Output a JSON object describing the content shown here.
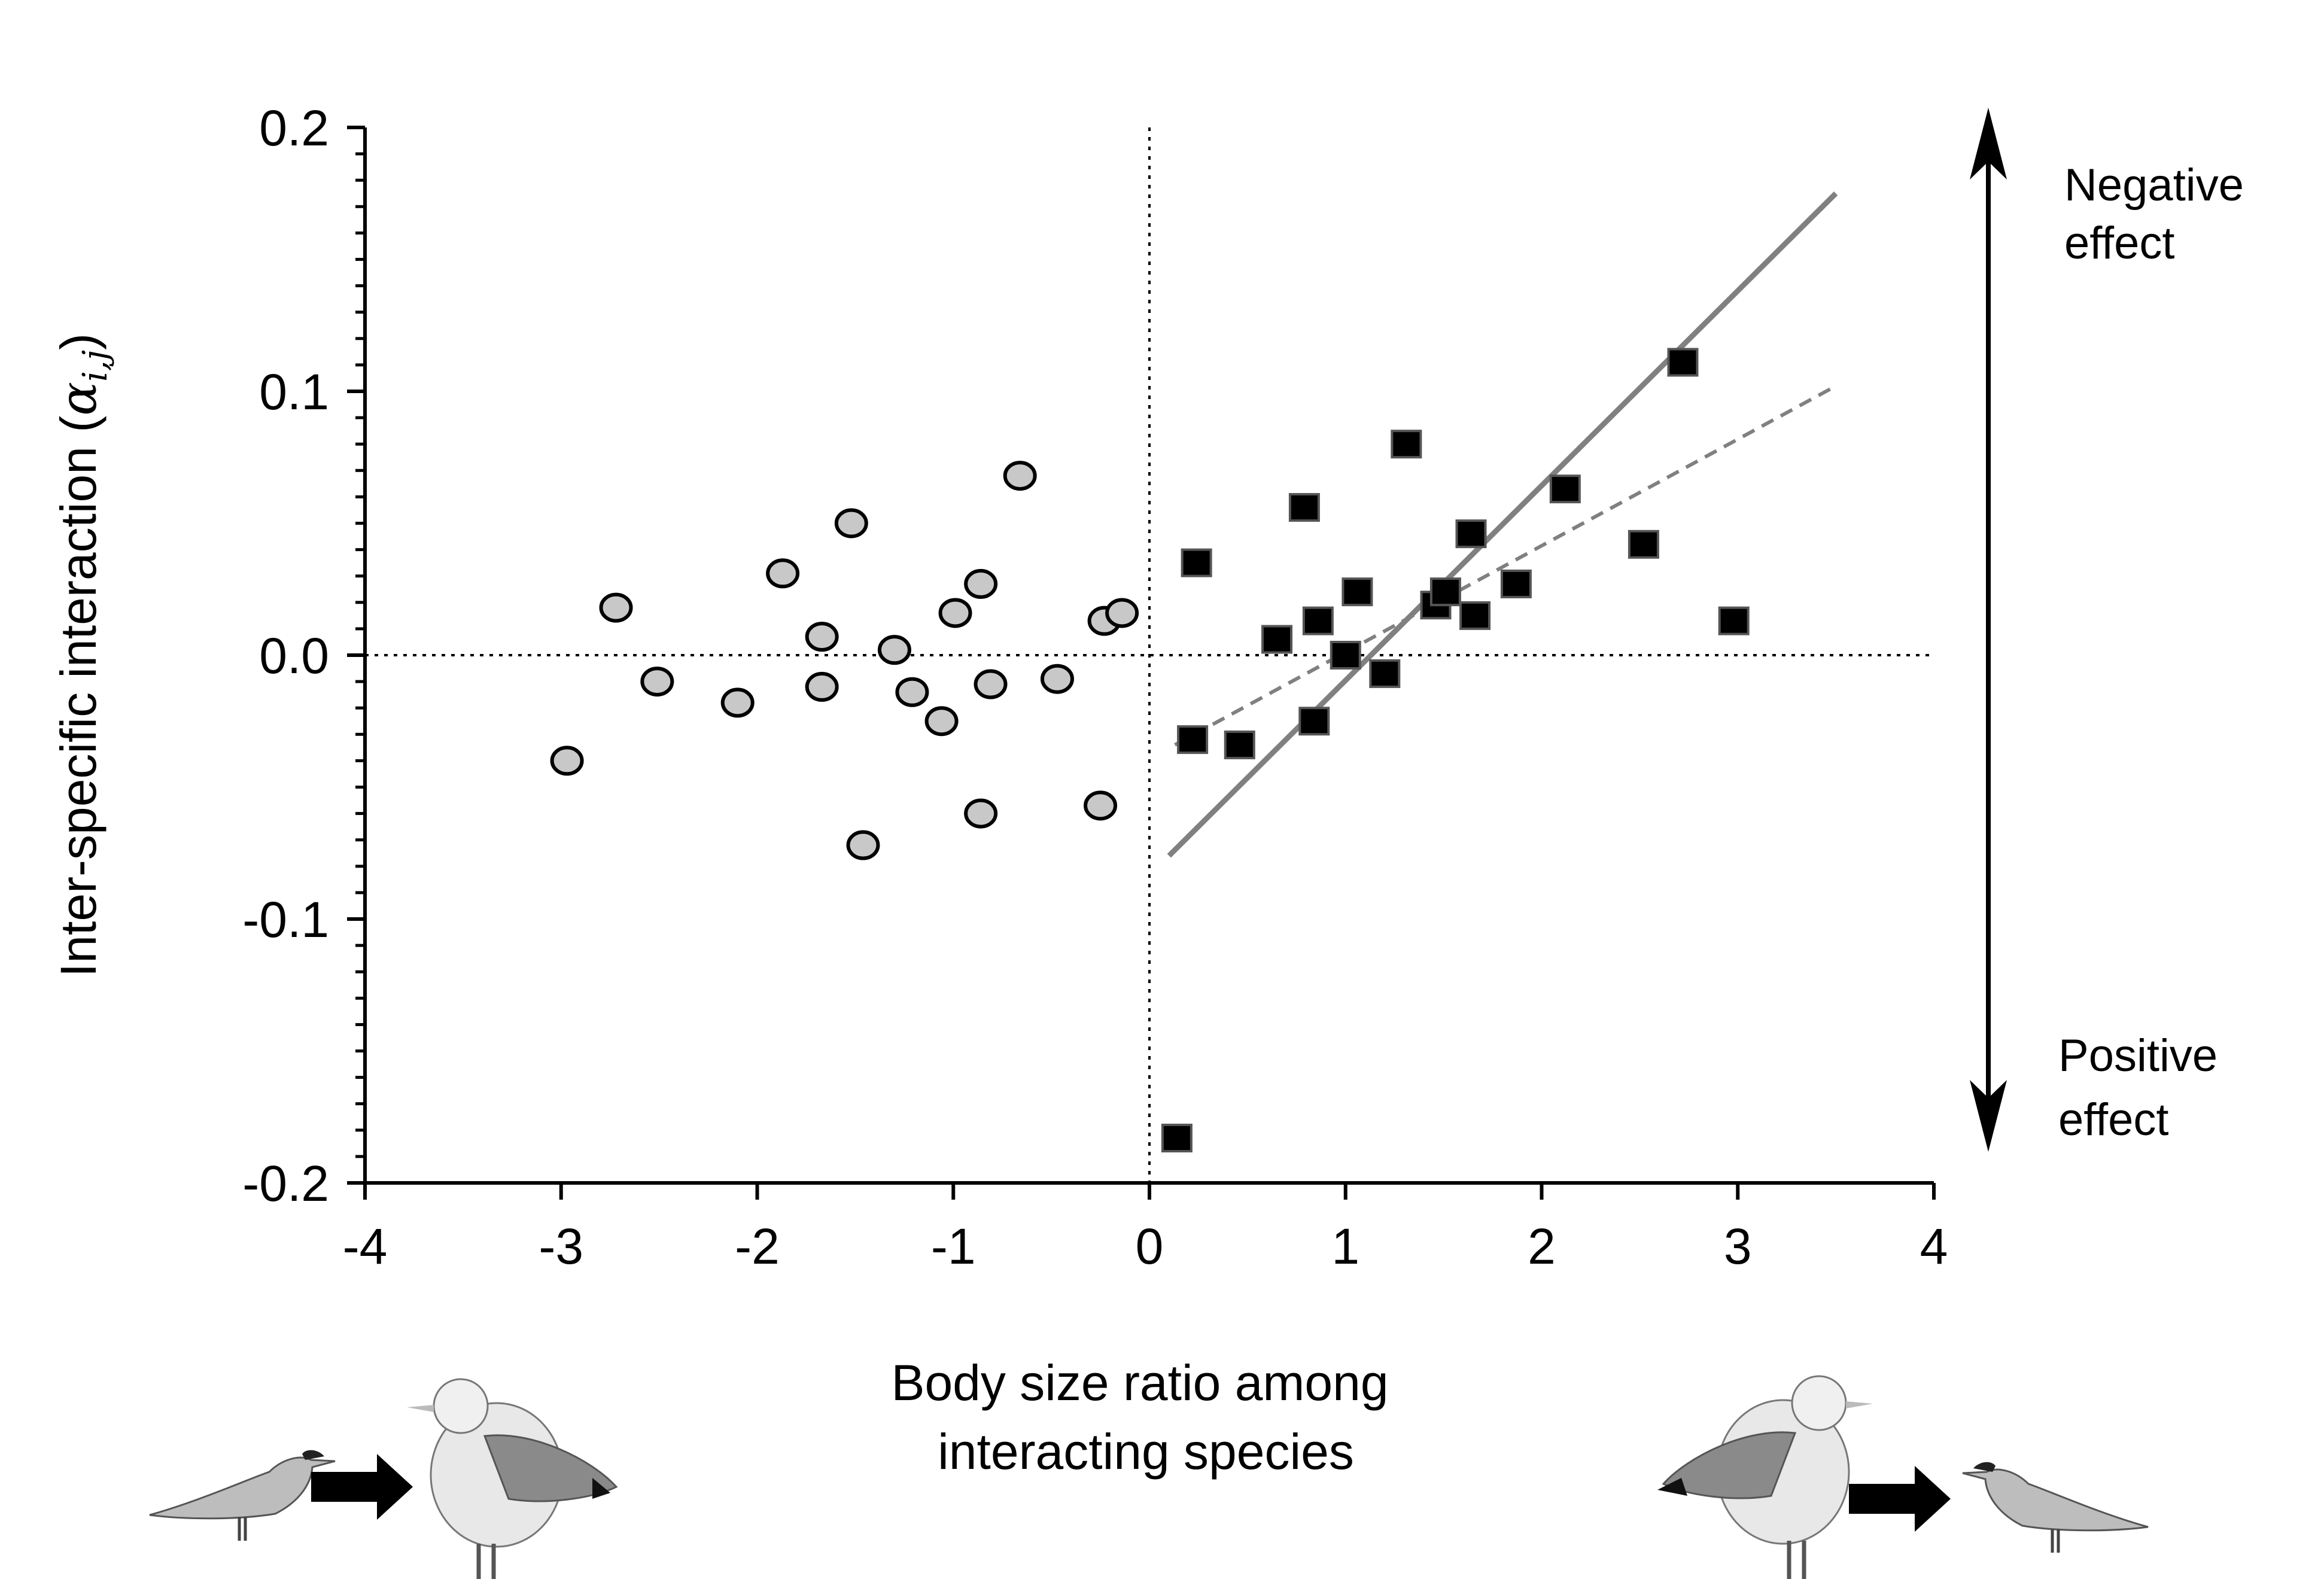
{
  "chart_data": {
    "type": "scatter",
    "xlabel_lines": [
      "Body size ratio among",
      "interacting species"
    ],
    "ylabel": "Inter-specific interaction",
    "ylabel_symbol": "α",
    "ylabel_subscript": "i,j",
    "xlim": [
      -4,
      4
    ],
    "ylim": [
      -0.2,
      0.2
    ],
    "xticks": [
      "-4",
      "-3",
      "-2",
      "-1",
      "0",
      "1",
      "2",
      "3",
      "4"
    ],
    "yticks": [
      "0.2",
      "0.1",
      "0.0",
      "-0.1",
      "-0.2"
    ],
    "reference_lines": {
      "x": 0,
      "y": 0
    },
    "annotations": {
      "negative": [
        "Negative",
        "effect"
      ],
      "positive": [
        "Positive",
        "effect"
      ]
    },
    "series": [
      {
        "marker": "circle",
        "fill": "#c8c8c8",
        "points": [
          [
            -2.97,
            -0.04
          ],
          [
            -2.72,
            0.018
          ],
          [
            -2.51,
            -0.01
          ],
          [
            -2.1,
            -0.018
          ],
          [
            -1.87,
            0.031
          ],
          [
            -1.67,
            0.007
          ],
          [
            -1.67,
            -0.012
          ],
          [
            -1.52,
            0.05
          ],
          [
            -1.46,
            -0.072
          ],
          [
            -1.3,
            0.002
          ],
          [
            -1.21,
            -0.014
          ],
          [
            -1.06,
            -0.025
          ],
          [
            -0.99,
            0.016
          ],
          [
            -0.86,
            0.027
          ],
          [
            -0.86,
            -0.06
          ],
          [
            -0.81,
            -0.011
          ],
          [
            -0.66,
            0.068
          ],
          [
            -0.47,
            -0.009
          ],
          [
            -0.25,
            -0.057
          ],
          [
            -0.23,
            0.013
          ],
          [
            -0.14,
            0.016
          ]
        ]
      },
      {
        "marker": "square",
        "fill": "#000000",
        "points": [
          [
            0.14,
            -0.183
          ],
          [
            0.22,
            -0.032
          ],
          [
            0.24,
            0.035
          ],
          [
            0.46,
            -0.034
          ],
          [
            0.65,
            0.006
          ],
          [
            0.79,
            0.056
          ],
          [
            0.84,
            -0.025
          ],
          [
            0.86,
            0.013
          ],
          [
            1.0,
            0.0
          ],
          [
            1.06,
            0.024
          ],
          [
            1.2,
            -0.007
          ],
          [
            1.31,
            0.08
          ],
          [
            1.46,
            0.019
          ],
          [
            1.51,
            0.024
          ],
          [
            1.64,
            0.046
          ],
          [
            1.66,
            0.015
          ],
          [
            1.87,
            0.027
          ],
          [
            2.12,
            0.063
          ],
          [
            2.52,
            0.042
          ],
          [
            2.72,
            0.111
          ],
          [
            2.98,
            0.013
          ]
        ]
      }
    ],
    "fit_lines": [
      {
        "style": "solid",
        "color": "#808080",
        "from": [
          0.1,
          -0.076
        ],
        "to": [
          3.5,
          0.175
        ]
      },
      {
        "style": "dashed",
        "color": "#808080",
        "from": [
          0.13,
          -0.034
        ],
        "to": [
          3.5,
          0.102
        ]
      }
    ]
  }
}
